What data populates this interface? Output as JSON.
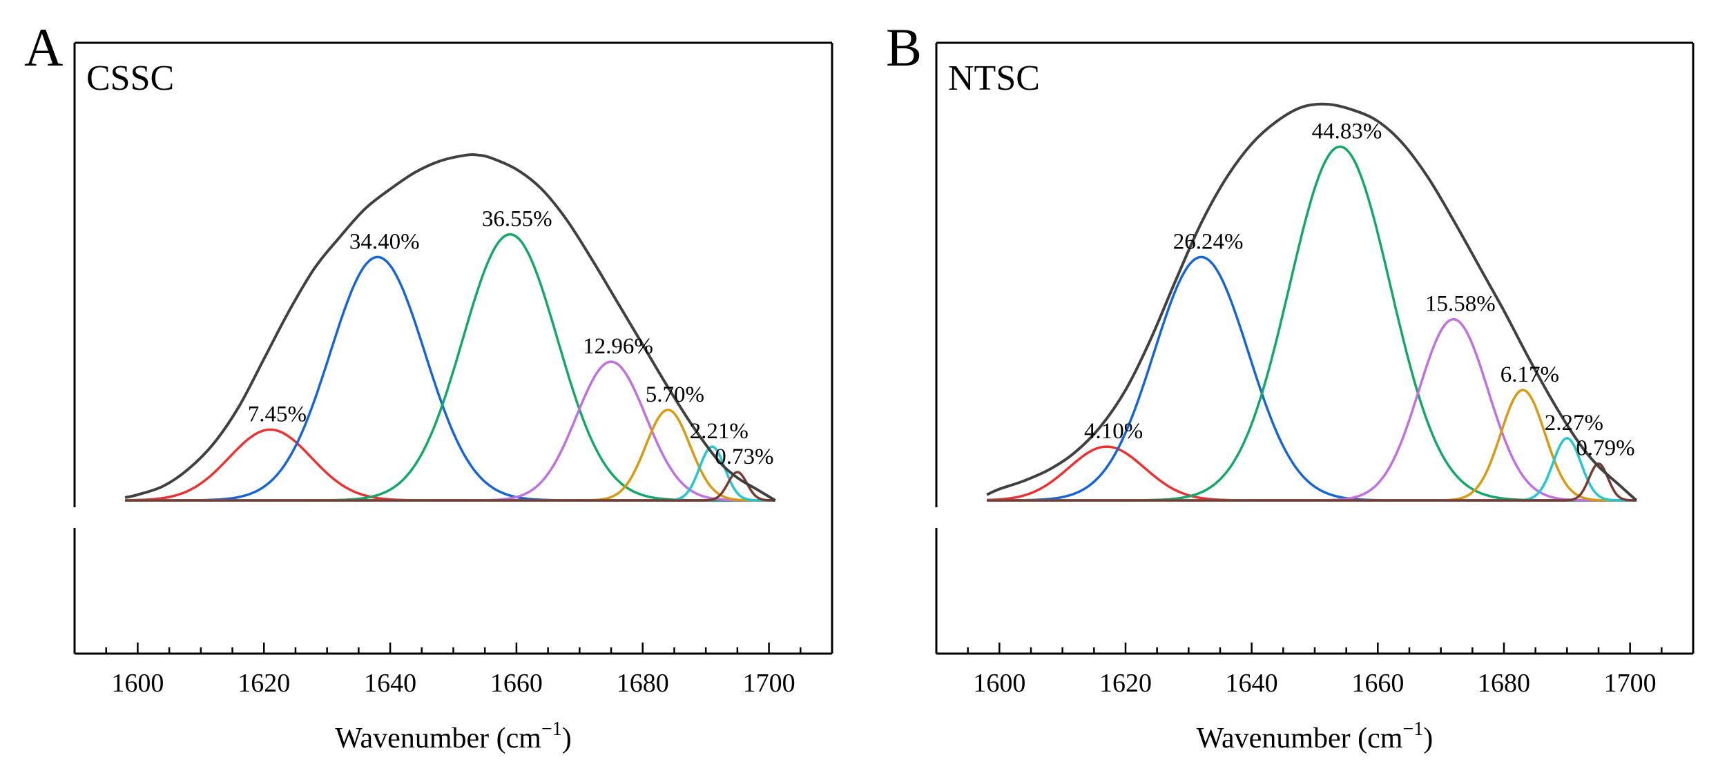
{
  "figure": {
    "xlabel": "Wavenumber (cm",
    "xlabel_sup": "−1",
    "xlabel_close": ")"
  },
  "chart_data": [
    {
      "panel": "A",
      "sample": "CSSC",
      "type": "line",
      "xlabel": "Wavenumber (cm−1)",
      "xlim": [
        1590,
        1710
      ],
      "xticks": [
        1600,
        1620,
        1640,
        1660,
        1680,
        1700
      ],
      "yaxis_labels": false,
      "grid": false,
      "legend": "none",
      "envelope": {
        "color": "#404040",
        "x": [
          1598,
          1600,
          1604,
          1608,
          1612,
          1616,
          1620,
          1624,
          1628,
          1632,
          1636,
          1640,
          1644,
          1648,
          1652,
          1654,
          1656,
          1660,
          1664,
          1668,
          1672,
          1676,
          1680,
          1684,
          1688,
          1692,
          1695,
          1698,
          1701
        ],
        "y": [
          0.01,
          0.02,
          0.05,
          0.11,
          0.2,
          0.33,
          0.5,
          0.67,
          0.82,
          0.93,
          1.03,
          1.1,
          1.16,
          1.2,
          1.22,
          1.22,
          1.21,
          1.17,
          1.1,
          0.99,
          0.85,
          0.7,
          0.55,
          0.4,
          0.26,
          0.14,
          0.08,
          0.04,
          0.0
        ]
      },
      "components": [
        {
          "label": "7.45%",
          "center": 1621,
          "height": 0.25,
          "sigma": 6.5,
          "color": "#ee3030"
        },
        {
          "label": "34.40%",
          "center": 1638,
          "height": 0.86,
          "sigma": 7.5,
          "color": "#1565d8"
        },
        {
          "label": "36.55%",
          "center": 1659,
          "height": 0.94,
          "sigma": 7.5,
          "color": "#12a868"
        },
        {
          "label": "12.96%",
          "center": 1675,
          "height": 0.49,
          "sigma": 5.5,
          "color": "#c070e0"
        },
        {
          "label": "5.70%",
          "center": 1684,
          "height": 0.32,
          "sigma": 3.5,
          "color": "#d99a10"
        },
        {
          "label": "2.21%",
          "center": 1691,
          "height": 0.19,
          "sigma": 2.0,
          "color": "#20c8d0"
        },
        {
          "label": "0.73%",
          "center": 1695,
          "height": 0.1,
          "sigma": 1.5,
          "color": "#7a3a30"
        }
      ],
      "baseline_color": "#8b3a3a"
    },
    {
      "panel": "B",
      "sample": "NTSC",
      "type": "line",
      "xlabel": "Wavenumber (cm−1)",
      "xlim": [
        1590,
        1710
      ],
      "xticks": [
        1600,
        1620,
        1640,
        1660,
        1680,
        1700
      ],
      "yaxis_labels": false,
      "grid": false,
      "legend": "none",
      "envelope": {
        "color": "#404040",
        "x": [
          1598,
          1600,
          1604,
          1608,
          1612,
          1616,
          1620,
          1624,
          1628,
          1632,
          1636,
          1640,
          1644,
          1648,
          1652,
          1656,
          1660,
          1664,
          1668,
          1672,
          1676,
          1680,
          1684,
          1688,
          1692,
          1695,
          1698,
          1701
        ],
        "y": [
          0.02,
          0.04,
          0.07,
          0.11,
          0.17,
          0.26,
          0.39,
          0.57,
          0.78,
          0.98,
          1.14,
          1.26,
          1.34,
          1.39,
          1.4,
          1.38,
          1.34,
          1.26,
          1.14,
          0.99,
          0.83,
          0.67,
          0.5,
          0.34,
          0.2,
          0.12,
          0.06,
          0.0
        ]
      },
      "components": [
        {
          "label": "4.10%",
          "center": 1617,
          "height": 0.19,
          "sigma": 6.0,
          "color": "#ee3030"
        },
        {
          "label": "26.24%",
          "center": 1632,
          "height": 0.86,
          "sigma": 7.5,
          "color": "#1565d8"
        },
        {
          "label": "44.83%",
          "center": 1654,
          "height": 1.25,
          "sigma": 8.0,
          "color": "#12a868"
        },
        {
          "label": "15.58%",
          "center": 1672,
          "height": 0.64,
          "sigma": 5.5,
          "color": "#c070e0"
        },
        {
          "label": "6.17%",
          "center": 1683,
          "height": 0.39,
          "sigma": 3.5,
          "color": "#d99a10"
        },
        {
          "label": "2.27%",
          "center": 1690,
          "height": 0.22,
          "sigma": 2.2,
          "color": "#20c8d0"
        },
        {
          "label": "0.79%",
          "center": 1695,
          "height": 0.13,
          "sigma": 1.5,
          "color": "#7a3a30"
        }
      ],
      "baseline_color": "#8b3a3a"
    }
  ]
}
